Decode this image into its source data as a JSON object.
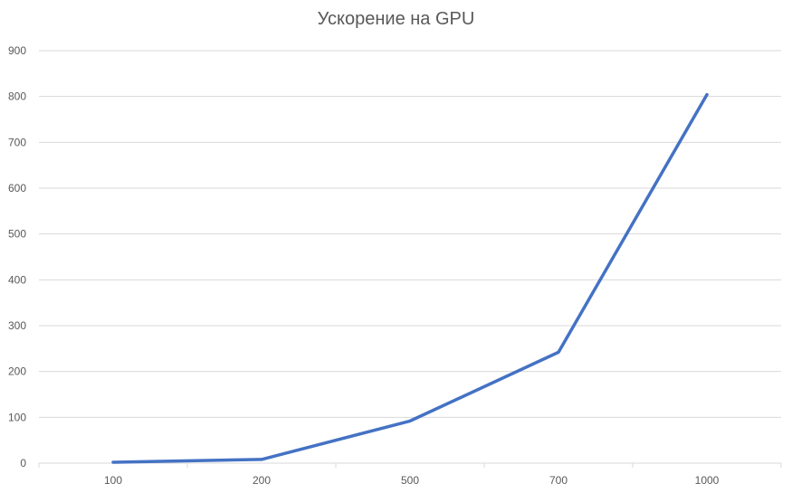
{
  "chart_data": {
    "type": "line",
    "title": "Ускорение на GPU",
    "xlabel": "",
    "ylabel": "",
    "categories": [
      "100",
      "200",
      "500",
      "700",
      "1000"
    ],
    "series": [
      {
        "values": [
          2,
          8,
          92,
          242,
          804
        ]
      }
    ],
    "ylim": [
      0,
      900
    ],
    "yticks": [
      0,
      100,
      200,
      300,
      400,
      500,
      600,
      700,
      800,
      900
    ],
    "grid": true,
    "legend": "none",
    "colors": {
      "line": "#4472c4",
      "grid": "#d9d9d9",
      "text": "#595959"
    }
  }
}
